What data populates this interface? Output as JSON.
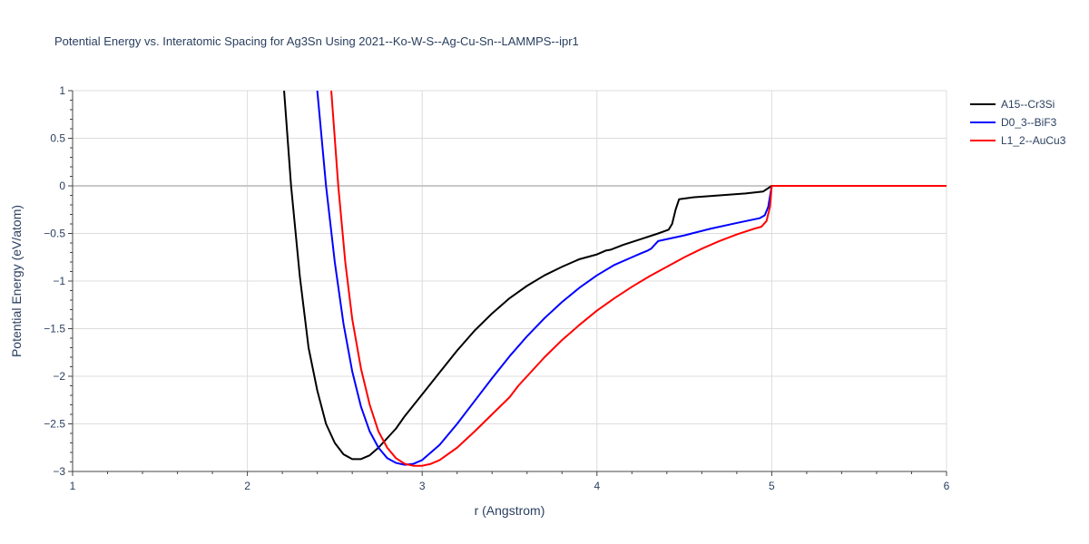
{
  "chart_data": {
    "type": "line",
    "title": "Potential Energy vs. Interatomic Spacing for Ag3Sn Using 2021--Ko-W-S--Ag-Cu-Sn--LAMMPS--ipr1",
    "xlabel": "r (Angstrom)",
    "ylabel": "Potential Energy (eV/atom)",
    "xlim": [
      1,
      6
    ],
    "ylim": [
      -3,
      1
    ],
    "xticks": [
      1,
      2,
      3,
      4,
      5,
      6
    ],
    "xtick_labels": [
      "1",
      "2",
      "3",
      "4",
      "5",
      "6"
    ],
    "yticks": [
      1,
      0.5,
      0,
      -0.5,
      -1,
      -1.5,
      -2,
      -2.5,
      -3
    ],
    "ytick_labels": [
      "1",
      "0.5",
      "0",
      "−0.5",
      "−1",
      "−1.5",
      "−2",
      "−2.5",
      "−3"
    ],
    "grid": true,
    "legend_position": "top-right",
    "series": [
      {
        "name": "A15--Cr3Si",
        "color": "#000000",
        "x": [
          2.21,
          2.25,
          2.3,
          2.35,
          2.4,
          2.45,
          2.5,
          2.55,
          2.6,
          2.65,
          2.7,
          2.75,
          2.8,
          2.85,
          2.9,
          3.0,
          3.1,
          3.2,
          3.3,
          3.4,
          3.5,
          3.6,
          3.7,
          3.8,
          3.9,
          4.0,
          4.05,
          4.08,
          4.15,
          4.25,
          4.35,
          4.41,
          4.43,
          4.45,
          4.47,
          4.55,
          4.7,
          4.85,
          4.95,
          5.0,
          5.5,
          6.0
        ],
        "y": [
          1.0,
          0.0,
          -0.95,
          -1.7,
          -2.15,
          -2.5,
          -2.7,
          -2.82,
          -2.87,
          -2.87,
          -2.83,
          -2.75,
          -2.65,
          -2.55,
          -2.42,
          -2.19,
          -1.96,
          -1.73,
          -1.52,
          -1.34,
          -1.18,
          -1.05,
          -0.94,
          -0.85,
          -0.77,
          -0.72,
          -0.68,
          -0.67,
          -0.62,
          -0.56,
          -0.5,
          -0.46,
          -0.4,
          -0.25,
          -0.14,
          -0.12,
          -0.1,
          -0.08,
          -0.06,
          0.0,
          0.0,
          0.0
        ]
      },
      {
        "name": "D0_3--BiF3",
        "color": "#0000ff",
        "x": [
          2.4,
          2.45,
          2.5,
          2.55,
          2.6,
          2.65,
          2.7,
          2.75,
          2.8,
          2.85,
          2.9,
          2.95,
          3.0,
          3.1,
          3.2,
          3.3,
          3.4,
          3.5,
          3.6,
          3.7,
          3.8,
          3.9,
          4.0,
          4.1,
          4.2,
          4.25,
          4.29,
          4.31,
          4.33,
          4.35,
          4.5,
          4.65,
          4.8,
          4.93,
          4.96,
          4.98,
          5.0,
          5.5,
          6.0
        ],
        "y": [
          1.0,
          0.0,
          -0.8,
          -1.45,
          -1.95,
          -2.32,
          -2.58,
          -2.75,
          -2.86,
          -2.91,
          -2.93,
          -2.92,
          -2.88,
          -2.72,
          -2.5,
          -2.26,
          -2.02,
          -1.79,
          -1.58,
          -1.39,
          -1.22,
          -1.07,
          -0.94,
          -0.83,
          -0.75,
          -0.71,
          -0.68,
          -0.66,
          -0.62,
          -0.58,
          -0.52,
          -0.45,
          -0.39,
          -0.34,
          -0.31,
          -0.22,
          0.0,
          0.0,
          0.0
        ]
      },
      {
        "name": "L1_2--AuCu3",
        "color": "#ff0000",
        "x": [
          2.48,
          2.52,
          2.56,
          2.6,
          2.65,
          2.7,
          2.75,
          2.8,
          2.85,
          2.9,
          2.95,
          3.0,
          3.05,
          3.1,
          3.2,
          3.3,
          3.4,
          3.5,
          3.55,
          3.6,
          3.7,
          3.8,
          3.9,
          4.0,
          4.1,
          4.2,
          4.3,
          4.4,
          4.5,
          4.6,
          4.7,
          4.8,
          4.9,
          4.94,
          4.97,
          4.99,
          5.0,
          5.5,
          6.0
        ],
        "y": [
          1.0,
          0.0,
          -0.8,
          -1.4,
          -1.92,
          -2.3,
          -2.58,
          -2.75,
          -2.86,
          -2.92,
          -2.94,
          -2.94,
          -2.92,
          -2.88,
          -2.75,
          -2.58,
          -2.4,
          -2.22,
          -2.1,
          -2.0,
          -1.8,
          -1.62,
          -1.46,
          -1.31,
          -1.18,
          -1.06,
          -0.95,
          -0.85,
          -0.75,
          -0.66,
          -0.58,
          -0.51,
          -0.45,
          -0.43,
          -0.37,
          -0.22,
          0.0,
          0.0,
          0.0
        ]
      }
    ]
  }
}
